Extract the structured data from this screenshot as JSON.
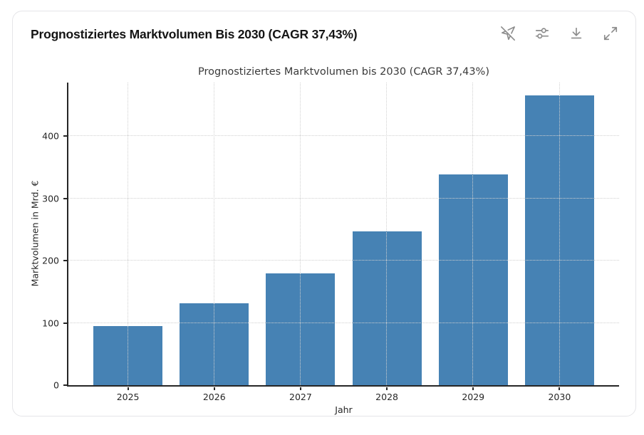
{
  "header": {
    "title": "Prognostiziertes Marktvolumen Bis 2030 (CAGR 37,43%)",
    "toolbar": {
      "buttons": [
        {
          "name": "navigation-off",
          "icon": "navigation-off-icon"
        },
        {
          "name": "settings-sliders",
          "icon": "sliders-icon"
        },
        {
          "name": "download",
          "icon": "download-icon"
        },
        {
          "name": "expand",
          "icon": "expand-icon"
        }
      ]
    }
  },
  "chart_data": {
    "type": "bar",
    "title": "Prognostiziertes Marktvolumen bis 2030 (CAGR 37,43%)",
    "categories": [
      "2025",
      "2026",
      "2027",
      "2028",
      "2029",
      "2030"
    ],
    "values": [
      95,
      131,
      179,
      247,
      339,
      466
    ],
    "xlabel": "Jahr",
    "ylabel": "Marktvolumen in Mrd. €",
    "ylim": [
      0,
      486
    ],
    "yticks": [
      0,
      100,
      200,
      300,
      400
    ],
    "grid": true,
    "grid_style": "dotted",
    "legend": "none",
    "bar_color": "#4682b4"
  },
  "colors": {
    "bar": "#4682b4",
    "axis": "#262626",
    "grid": "#d0d0d0",
    "icon": "#8c8c8c",
    "card_border": "#e5e5e8",
    "title_text": "#141414",
    "chart_title_text": "#3a3a3a"
  }
}
